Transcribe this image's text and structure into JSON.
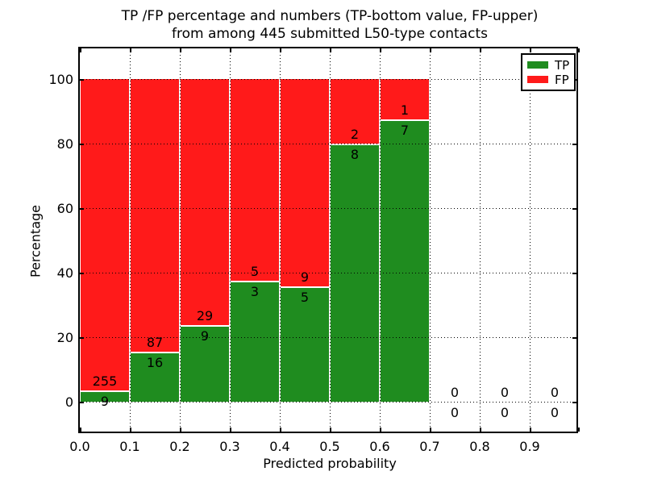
{
  "chart_data": {
    "type": "bar",
    "stacked": true,
    "title_line1": "TP /FP percentage and numbers (TP-bottom value, FP-upper)",
    "title_line2": "from among 445 submitted L50-type contacts",
    "xlabel": "Predicted probability",
    "ylabel": "Percentage",
    "x_tick_labels": [
      "0.0",
      "0.1",
      "0.2",
      "0.3",
      "0.4",
      "0.5",
      "0.6",
      "0.7",
      "0.8",
      "0.9"
    ],
    "y_tick_values": [
      0,
      20,
      40,
      60,
      80,
      100
    ],
    "xlim": [
      0.0,
      1.0
    ],
    "ylim": [
      -10,
      110
    ],
    "bin_width": 0.1,
    "bin_starts": [
      0.0,
      0.1,
      0.2,
      0.3,
      0.4,
      0.5,
      0.6,
      0.7,
      0.8,
      0.9
    ],
    "total_contacts": 445,
    "grid": true,
    "grid_style": "dotted",
    "series": [
      {
        "name": "TP",
        "color": "#1f8c1f",
        "counts": [
          9,
          16,
          9,
          3,
          5,
          8,
          7,
          0,
          0,
          0
        ]
      },
      {
        "name": "FP",
        "color": "#ff1a1a",
        "counts": [
          255,
          87,
          29,
          5,
          9,
          2,
          1,
          0,
          0,
          0
        ]
      }
    ],
    "tp_percent": [
      3.4,
      15.5,
      23.7,
      37.5,
      35.7,
      80.0,
      87.5,
      0.0,
      0.0,
      0.0
    ],
    "legend": {
      "position": "upper right",
      "entries": [
        {
          "label": "TP",
          "color": "#1f8c1f"
        },
        {
          "label": "FP",
          "color": "#ff1a1a"
        }
      ]
    }
  }
}
